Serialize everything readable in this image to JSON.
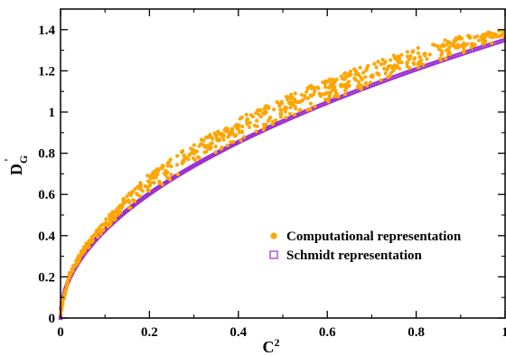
{
  "chart_data": {
    "type": "scatter",
    "title": "",
    "xlabel": "C",
    "xlabel_superscript": "2",
    "ylabel": "D",
    "ylabel_subscript": "G",
    "ylabel_prime": "'",
    "xlim": [
      0,
      1
    ],
    "ylim": [
      0,
      1.5
    ],
    "xticks": [
      "0",
      "0.2",
      "0.4",
      "0.6",
      "0.8",
      "1"
    ],
    "yticks": [
      "0",
      "0.2",
      "0.4",
      "0.6",
      "0.8",
      "1",
      "1.2",
      "1.4"
    ],
    "grid": false,
    "legend_position": "bottom-right",
    "series": [
      {
        "name": "Computational representation",
        "marker": "filled-circle",
        "color": "#FFA500",
        "band_lower": "sqrt(x)*1.35",
        "band_upper_points": [
          [
            0,
            0
          ],
          [
            0.02,
            0.22
          ],
          [
            0.05,
            0.34
          ],
          [
            0.1,
            0.48
          ],
          [
            0.15,
            0.6
          ],
          [
            0.2,
            0.7
          ],
          [
            0.3,
            0.85
          ],
          [
            0.4,
            0.97
          ],
          [
            0.5,
            1.07
          ],
          [
            0.6,
            1.16
          ],
          [
            0.7,
            1.24
          ],
          [
            0.8,
            1.31
          ],
          [
            0.9,
            1.37
          ],
          [
            1.0,
            1.4
          ]
        ],
        "approx_point_count": 700
      },
      {
        "name": "Schmidt representation",
        "marker": "open-square",
        "color": "#9B30D0",
        "x": [
          0,
          0.005,
          0.01,
          0.02,
          0.03,
          0.05,
          0.07,
          0.1,
          0.13,
          0.16,
          0.2,
          0.25,
          0.3,
          0.35,
          0.4,
          0.45,
          0.5,
          0.55,
          0.6,
          0.65,
          0.7,
          0.75,
          0.8,
          0.85,
          0.9,
          0.95,
          1.0
        ],
        "y": [
          0,
          0.095,
          0.135,
          0.191,
          0.234,
          0.302,
          0.357,
          0.427,
          0.487,
          0.54,
          0.604,
          0.675,
          0.739,
          0.799,
          0.854,
          0.906,
          0.955,
          1.001,
          1.046,
          1.088,
          1.13,
          1.169,
          1.208,
          1.245,
          1.281,
          1.316,
          1.35
        ]
      }
    ]
  }
}
